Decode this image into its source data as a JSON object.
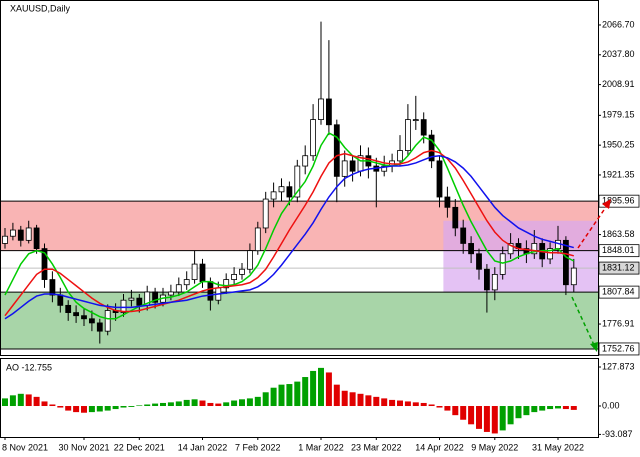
{
  "chart_data": {
    "type": "candlestick",
    "title": "XAUUSD,Daily",
    "categories": [
      "8 Nov 2021",
      null,
      null,
      null,
      null,
      null,
      null,
      null,
      null,
      null,
      "30 Nov 2021",
      null,
      null,
      null,
      null,
      null,
      null,
      "22 Dec 2021",
      null,
      null,
      null,
      null,
      null,
      null,
      null,
      "14 Jan 2022",
      null,
      null,
      null,
      null,
      null,
      null,
      "7 Feb 2022",
      null,
      null,
      null,
      null,
      null,
      null,
      null,
      "1 Mar 2022",
      null,
      null,
      null,
      null,
      null,
      null,
      "23 Mar 2022",
      null,
      null,
      null,
      null,
      null,
      null,
      null,
      "14 Apr 2022",
      null,
      null,
      null,
      null,
      null,
      null,
      "9 May 2022",
      null,
      null,
      null,
      null,
      null,
      null,
      null,
      "31 May 2022",
      null,
      null
    ],
    "ohlc": [
      [
        1855,
        1870,
        1850,
        1862
      ],
      [
        1862,
        1875,
        1858,
        1868
      ],
      [
        1868,
        1872,
        1852,
        1858
      ],
      [
        1858,
        1877,
        1855,
        1870
      ],
      [
        1870,
        1873,
        1845,
        1850
      ],
      [
        1850,
        1855,
        1812,
        1820
      ],
      [
        1820,
        1828,
        1798,
        1805
      ],
      [
        1805,
        1812,
        1788,
        1795
      ],
      [
        1795,
        1800,
        1780,
        1788
      ],
      [
        1788,
        1795,
        1778,
        1785
      ],
      [
        1785,
        1792,
        1775,
        1782
      ],
      [
        1782,
        1790,
        1770,
        1778
      ],
      [
        1778,
        1782,
        1758,
        1770
      ],
      [
        1770,
        1796,
        1766,
        1790
      ],
      [
        1790,
        1797,
        1780,
        1788
      ],
      [
        1788,
        1806,
        1784,
        1800
      ],
      [
        1800,
        1810,
        1794,
        1802
      ],
      [
        1802,
        1806,
        1788,
        1795
      ],
      [
        1795,
        1814,
        1790,
        1808
      ],
      [
        1808,
        1812,
        1792,
        1798
      ],
      [
        1798,
        1812,
        1794,
        1805
      ],
      [
        1805,
        1815,
        1800,
        1808
      ],
      [
        1808,
        1822,
        1804,
        1815
      ],
      [
        1815,
        1828,
        1810,
        1820
      ],
      [
        1820,
        1848,
        1816,
        1835
      ],
      [
        1835,
        1840,
        1812,
        1818
      ],
      [
        1818,
        1822,
        1790,
        1800
      ],
      [
        1800,
        1818,
        1796,
        1812
      ],
      [
        1812,
        1826,
        1806,
        1820
      ],
      [
        1820,
        1832,
        1815,
        1825
      ],
      [
        1825,
        1836,
        1820,
        1830
      ],
      [
        1830,
        1855,
        1826,
        1848
      ],
      [
        1848,
        1876,
        1844,
        1870
      ],
      [
        1870,
        1905,
        1865,
        1898
      ],
      [
        1898,
        1914,
        1890,
        1905
      ],
      [
        1905,
        1918,
        1896,
        1910
      ],
      [
        1910,
        1915,
        1892,
        1900
      ],
      [
        1900,
        1936,
        1895,
        1930
      ],
      [
        1930,
        1950,
        1922,
        1940
      ],
      [
        1940,
        1990,
        1935,
        1975
      ],
      [
        1975,
        2070,
        1970,
        1995
      ],
      [
        1995,
        2052,
        1960,
        1970
      ],
      [
        1970,
        1975,
        1895,
        1920
      ],
      [
        1920,
        1945,
        1910,
        1935
      ],
      [
        1935,
        1940,
        1915,
        1925
      ],
      [
        1925,
        1950,
        1920,
        1940
      ],
      [
        1940,
        1948,
        1918,
        1930
      ],
      [
        1930,
        1938,
        1890,
        1925
      ],
      [
        1925,
        1940,
        1920,
        1930
      ],
      [
        1930,
        1942,
        1924,
        1935
      ],
      [
        1935,
        1960,
        1930,
        1945
      ],
      [
        1945,
        1990,
        1940,
        1975
      ],
      [
        1975,
        1998,
        1965,
        1975
      ],
      [
        1975,
        1982,
        1952,
        1960
      ],
      [
        1960,
        1965,
        1928,
        1935
      ],
      [
        1935,
        1940,
        1890,
        1900
      ],
      [
        1900,
        1910,
        1880,
        1890
      ],
      [
        1890,
        1898,
        1862,
        1870
      ],
      [
        1870,
        1878,
        1845,
        1855
      ],
      [
        1855,
        1862,
        1836,
        1845
      ],
      [
        1845,
        1850,
        1820,
        1830
      ],
      [
        1830,
        1835,
        1788,
        1810
      ],
      [
        1810,
        1832,
        1800,
        1825
      ],
      [
        1825,
        1852,
        1820,
        1845
      ],
      [
        1845,
        1865,
        1840,
        1855
      ],
      [
        1855,
        1860,
        1840,
        1850
      ],
      [
        1850,
        1858,
        1836,
        1845
      ],
      [
        1845,
        1868,
        1840,
        1855
      ],
      [
        1855,
        1860,
        1832,
        1840
      ],
      [
        1840,
        1856,
        1835,
        1850
      ],
      [
        1850,
        1872,
        1845,
        1858
      ],
      [
        1858,
        1862,
        1805,
        1815
      ],
      [
        1815,
        1840,
        1808,
        1831.12
      ]
    ],
    "ma": [
      {
        "color": "#00cc00",
        "values": [
          1805,
          1820,
          1835,
          1845,
          1848,
          1846,
          1835,
          1822,
          1808,
          1798,
          1792,
          1788,
          1784,
          1782,
          1782,
          1786,
          1790,
          1794,
          1797,
          1800,
          1802,
          1803,
          1805,
          1808,
          1813,
          1818,
          1818,
          1815,
          1814,
          1815,
          1818,
          1824,
          1834,
          1850,
          1868,
          1884,
          1895,
          1905,
          1915,
          1930,
          1950,
          1962,
          1958,
          1948,
          1940,
          1935,
          1935,
          1933,
          1931,
          1930,
          1932,
          1940,
          1950,
          1958,
          1955,
          1945,
          1928,
          1910,
          1892,
          1876,
          1862,
          1848,
          1838,
          1836,
          1838,
          1842,
          1845,
          1847,
          1848,
          1848,
          1850,
          1842,
          1838
        ]
      },
      {
        "color": "#ee1111",
        "values": [
          1785,
          1795,
          1805,
          1815,
          1825,
          1830,
          1830,
          1826,
          1820,
          1814,
          1808,
          1802,
          1797,
          1793,
          1790,
          1789,
          1789,
          1790,
          1792,
          1794,
          1796,
          1798,
          1800,
          1803,
          1806,
          1809,
          1811,
          1812,
          1813,
          1814,
          1815,
          1817,
          1822,
          1830,
          1842,
          1855,
          1868,
          1880,
          1892,
          1905,
          1920,
          1933,
          1940,
          1942,
          1940,
          1938,
          1937,
          1935,
          1933,
          1932,
          1932,
          1934,
          1938,
          1943,
          1945,
          1943,
          1937,
          1928,
          1916,
          1903,
          1890,
          1877,
          1866,
          1858,
          1853,
          1850,
          1849,
          1848,
          1847,
          1846,
          1846,
          1845,
          1843
        ]
      },
      {
        "color": "#1111ee",
        "values": [
          1782,
          1787,
          1793,
          1799,
          1804,
          1806,
          1806,
          1805,
          1803,
          1801,
          1799,
          1797,
          1795,
          1794,
          1793,
          1793,
          1793,
          1794,
          1795,
          1796,
          1797,
          1798,
          1799,
          1800,
          1802,
          1804,
          1805,
          1806,
          1807,
          1808,
          1809,
          1810,
          1813,
          1818,
          1825,
          1834,
          1844,
          1854,
          1864,
          1875,
          1888,
          1900,
          1910,
          1918,
          1922,
          1925,
          1927,
          1928,
          1929,
          1930,
          1930,
          1931,
          1933,
          1936,
          1939,
          1940,
          1938,
          1934,
          1928,
          1920,
          1910,
          1900,
          1890,
          1882,
          1876,
          1870,
          1866,
          1862,
          1859,
          1857,
          1855,
          1853,
          1851
        ]
      }
    ],
    "ylim": [
      1746.9,
      2090.9
    ],
    "yticks": [
      {
        "value": 2066.7,
        "label": "2066.70"
      },
      {
        "value": 2037.8,
        "label": "2037.80"
      },
      2008.91,
      1979.15,
      1950.25,
      1921.35,
      1863.58,
      1776.91
    ],
    "levels": [
      1895.96,
      1848.01,
      1831.12,
      1807.84,
      1752.76
    ],
    "zones": [
      {
        "top": 1895.96,
        "bottom": 1848.01,
        "color": "#f9b4b4"
      },
      {
        "top": 1807.84,
        "bottom": 1752.76,
        "color": "#a8d5a8"
      }
    ],
    "box": {
      "top": 1877,
      "bottom": 1807.84,
      "color": "#d9a8f0"
    },
    "ao": {
      "label": "AO -12.755",
      "up_color": "#00a000",
      "down_color": "#e00000",
      "values": [
        25,
        35,
        40,
        38,
        30,
        15,
        5,
        -5,
        -15,
        -20,
        -22,
        -20,
        -18,
        -15,
        -10,
        -5,
        -3,
        2,
        5,
        8,
        10,
        12,
        15,
        20,
        22,
        18,
        10,
        8,
        12,
        18,
        22,
        25,
        30,
        45,
        60,
        70,
        72,
        80,
        95,
        115,
        125,
        110,
        70,
        50,
        45,
        40,
        35,
        30,
        25,
        20,
        18,
        15,
        12,
        10,
        5,
        -5,
        -15,
        -30,
        -45,
        -60,
        -75,
        -85,
        -90,
        -80,
        -60,
        -40,
        -30,
        -20,
        -15,
        -10,
        -8,
        -10,
        -12.755
      ],
      "ylim": [
        -101.6,
        157.4
      ],
      "yticks": [
        127.873,
        {
          "value": 0,
          "label": "0.00"
        },
        -93.087
      ]
    }
  }
}
